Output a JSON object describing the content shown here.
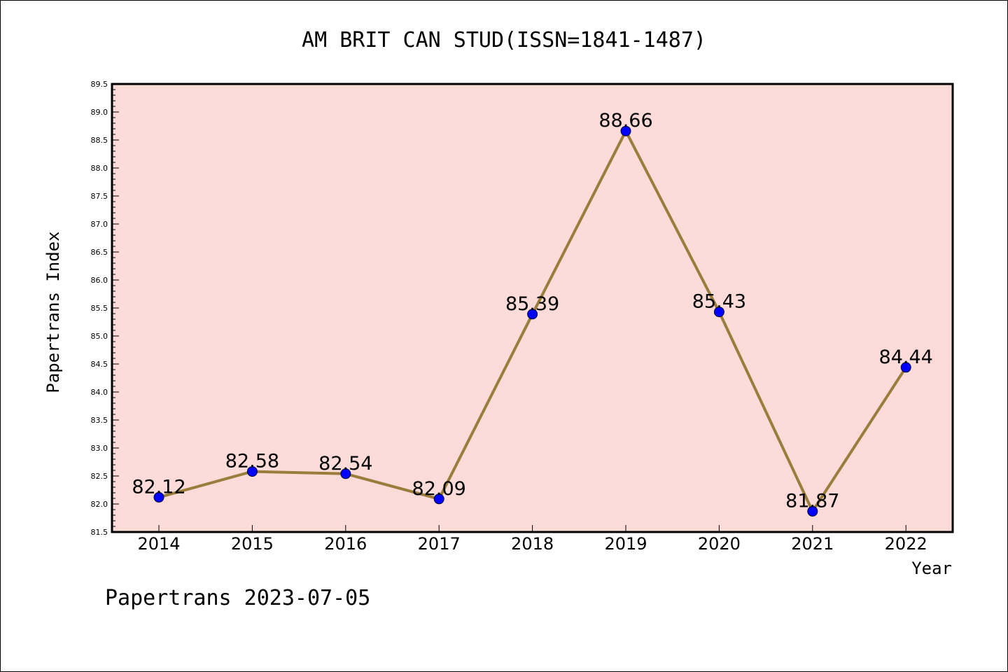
{
  "chart_data": {
    "type": "line",
    "title": "AM BRIT CAN STUD(ISSN=1841-1487)",
    "xlabel": "Year",
    "ylabel": "Papertrans Index",
    "categories": [
      "2014",
      "2015",
      "2016",
      "2017",
      "2018",
      "2019",
      "2020",
      "2021",
      "2022"
    ],
    "series": [
      {
        "values": [
          82.12,
          82.58,
          82.54,
          82.09,
          85.39,
          88.66,
          85.43,
          81.87,
          84.44
        ]
      }
    ],
    "ylim": [
      81.5,
      89.5
    ],
    "yticks": [
      "81.5",
      "82.0",
      "82.5",
      "83.0",
      "83.5",
      "84.0",
      "84.5",
      "85.0",
      "85.5",
      "86.0",
      "86.5",
      "87.0",
      "87.5",
      "88.0",
      "88.5",
      "89.0",
      "89.5"
    ],
    "grid": false,
    "line_color": "#9a7d3c",
    "marker_color": "#0000ff",
    "plot_background": "#fddbd8",
    "footer": "Papertrans 2023-07-05"
  }
}
